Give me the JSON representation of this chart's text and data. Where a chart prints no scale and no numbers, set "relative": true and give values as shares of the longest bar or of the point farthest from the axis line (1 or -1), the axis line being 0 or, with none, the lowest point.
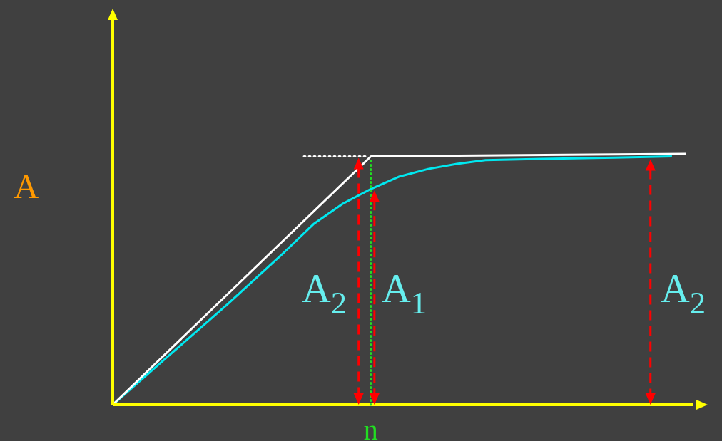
{
  "chart_data": {
    "type": "line",
    "relative": true,
    "xlabel": "n",
    "ylabel": "A",
    "categories": [
      null,
      null,
      null,
      null,
      null,
      null,
      null,
      null,
      null,
      null,
      null,
      null,
      null,
      null,
      null,
      null,
      null,
      null,
      null,
      null,
      null,
      null,
      null,
      null,
      null,
      null,
      null,
      null,
      null,
      null,
      null,
      null,
      null,
      null,
      null,
      null,
      null,
      null,
      null,
      null,
      null
    ],
    "series": [
      {
        "color": "#ffffff",
        "values": [
          0,
          null,
          null,
          null,
          null,
          null,
          null,
          null,
          null,
          null,
          null,
          null,
          null,
          null,
          null,
          null,
          null,
          null,
          0.99,
          null,
          null,
          null,
          null,
          null,
          null,
          null,
          null,
          null,
          null,
          null,
          null,
          null,
          null,
          null,
          null,
          null,
          null,
          null,
          null,
          null,
          1
        ]
      },
      {
        "color": "#00e8f0",
        "values": [
          0,
          null,
          null,
          null,
          0.2,
          null,
          null,
          null,
          0.4,
          null,
          null,
          null,
          0.61,
          null,
          0.72,
          null,
          0.8,
          null,
          0.86,
          null,
          0.91,
          null,
          0.94,
          null,
          0.96,
          null,
          0.975,
          null,
          null,
          null,
          0.98,
          null,
          null,
          null,
          null,
          0.985,
          null,
          null,
          null,
          0.99,
          null
        ]
      }
    ],
    "annotations": [
      "A$_{2}$",
      "A$_{1}$",
      "A$_{2}$"
    ],
    "ref_lines": [
      {
        "axis": "y",
        "value": 0.99,
        "color": "#ffffff",
        "line_style": "dotted"
      }
    ],
    "legend": false,
    "tick_labels": false,
    "marker": "none",
    "line_style": "solid"
  }
}
